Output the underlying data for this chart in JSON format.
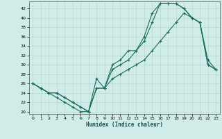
{
  "xlabel": "Humidex (Indice chaleur)",
  "bg_color": "#d0ece8",
  "grid_color": "#b8d8d0",
  "line_color": "#1a6b5a",
  "xlim": [
    -0.5,
    23.5
  ],
  "ylim": [
    19.5,
    43.5
  ],
  "xticks": [
    0,
    1,
    2,
    3,
    4,
    5,
    6,
    7,
    8,
    9,
    10,
    11,
    12,
    13,
    14,
    15,
    16,
    17,
    18,
    19,
    20,
    21,
    22,
    23
  ],
  "yticks": [
    20,
    22,
    24,
    26,
    28,
    30,
    32,
    34,
    36,
    38,
    40,
    42
  ],
  "line1_x": [
    0,
    1,
    2,
    3,
    4,
    5,
    6,
    7,
    8,
    9,
    10,
    11,
    12,
    13,
    14,
    15,
    16,
    17,
    18,
    19,
    20,
    21,
    22,
    23
  ],
  "line1_y": [
    26,
    25,
    24,
    23,
    22,
    21,
    20,
    20,
    25,
    25,
    29,
    30,
    31,
    33,
    35,
    39,
    43,
    43,
    43,
    42,
    40,
    39,
    30,
    29
  ],
  "line2_x": [
    0,
    1,
    2,
    3,
    4,
    5,
    6,
    7,
    8,
    9,
    10,
    11,
    12,
    13,
    14,
    15,
    16,
    17,
    18,
    19,
    20,
    21,
    22,
    23
  ],
  "line2_y": [
    26,
    25,
    24,
    24,
    23,
    22,
    21,
    20,
    27,
    25,
    30,
    31,
    33,
    33,
    36,
    41,
    43,
    43,
    43,
    42,
    40,
    39,
    31,
    29
  ],
  "line3_x": [
    0,
    1,
    2,
    3,
    4,
    5,
    6,
    7,
    8,
    9,
    10,
    11,
    12,
    13,
    14,
    15,
    16,
    17,
    18,
    19,
    20,
    21,
    22,
    23
  ],
  "line3_y": [
    26,
    25,
    24,
    24,
    23,
    22,
    21,
    20,
    25,
    25,
    27,
    28,
    29,
    30,
    31,
    33,
    35,
    37,
    39,
    41,
    40,
    39,
    30,
    29
  ]
}
